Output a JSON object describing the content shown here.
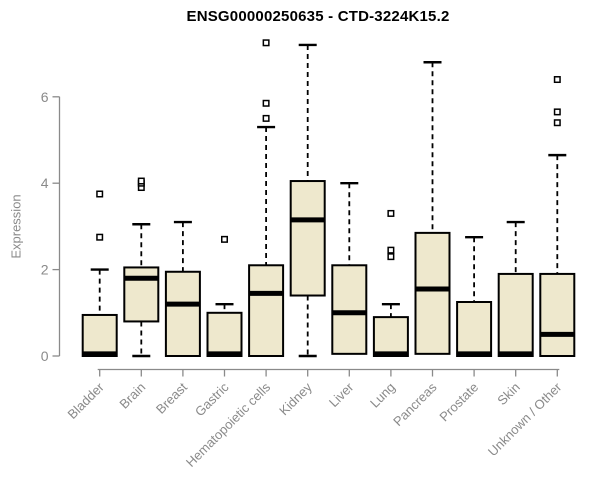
{
  "chart_data": {
    "type": "boxplot",
    "title": "ENSG00000250635 - CTD-3224K15.2",
    "ylabel": "Expression",
    "xlabel": "",
    "yticks": [
      0,
      2,
      4,
      6
    ],
    "ylim": [
      0,
      7.4
    ],
    "grid": false,
    "legend": "none",
    "categories": [
      "Bladder",
      "Brain",
      "Breast",
      "Gastric",
      "Hematopoietic cells",
      "Kidney",
      "Liver",
      "Lung",
      "Pancreas",
      "Prostate",
      "Skin",
      "Unknown / Other"
    ],
    "boxes": [
      {
        "category": "Bladder",
        "whisker_low": 0,
        "q1": 0,
        "median": 0.05,
        "q3": 0.95,
        "whisker_high": 2.0,
        "outliers": [
          2.75,
          3.75
        ]
      },
      {
        "category": "Brain",
        "whisker_low": 0,
        "q1": 0.8,
        "median": 1.8,
        "q3": 2.05,
        "whisker_high": 3.05,
        "outliers": [
          3.9,
          4.0,
          4.05
        ]
      },
      {
        "category": "Breast",
        "whisker_low": 0,
        "q1": 0,
        "median": 1.2,
        "q3": 1.95,
        "whisker_high": 3.1,
        "outliers": []
      },
      {
        "category": "Gastric",
        "whisker_low": 0,
        "q1": 0,
        "median": 0.05,
        "q3": 1.0,
        "whisker_high": 1.2,
        "outliers": [
          2.7
        ]
      },
      {
        "category": "Hematopoietic cells",
        "whisker_low": 0,
        "q1": 0,
        "median": 1.45,
        "q3": 2.1,
        "whisker_high": 5.3,
        "outliers": [
          5.5,
          5.85,
          7.25
        ]
      },
      {
        "category": "Kidney",
        "whisker_low": 0,
        "q1": 1.4,
        "median": 3.15,
        "q3": 4.05,
        "whisker_high": 7.2,
        "outliers": []
      },
      {
        "category": "Liver",
        "whisker_low": 0.05,
        "q1": 0.05,
        "median": 1.0,
        "q3": 2.1,
        "whisker_high": 4.0,
        "outliers": []
      },
      {
        "category": "Lung",
        "whisker_low": 0,
        "q1": 0,
        "median": 0.05,
        "q3": 0.9,
        "whisker_high": 1.2,
        "outliers": [
          2.3,
          2.45,
          3.3
        ]
      },
      {
        "category": "Pancreas",
        "whisker_low": 0.05,
        "q1": 0.05,
        "median": 1.55,
        "q3": 2.85,
        "whisker_high": 6.8,
        "outliers": []
      },
      {
        "category": "Prostate",
        "whisker_low": 0,
        "q1": 0,
        "median": 0.05,
        "q3": 1.25,
        "whisker_high": 2.75,
        "outliers": []
      },
      {
        "category": "Skin",
        "whisker_low": 0,
        "q1": 0,
        "median": 0.05,
        "q3": 1.9,
        "whisker_high": 3.1,
        "outliers": []
      },
      {
        "category": "Unknown / Other",
        "whisker_low": 0,
        "q1": 0,
        "median": 0.5,
        "q3": 1.9,
        "whisker_high": 4.65,
        "outliers": [
          5.4,
          5.65,
          6.4
        ]
      }
    ],
    "style": {
      "box_fill": "#EEE8CD",
      "box_border": "#000000",
      "median_color": "#000000",
      "whisker_color": "#000000",
      "outlier_color": "#000000",
      "axis_color": "#8a8a8a",
      "tick_label_color": "#8a8a8a",
      "title_color": "#000000",
      "background": "#ffffff"
    }
  }
}
